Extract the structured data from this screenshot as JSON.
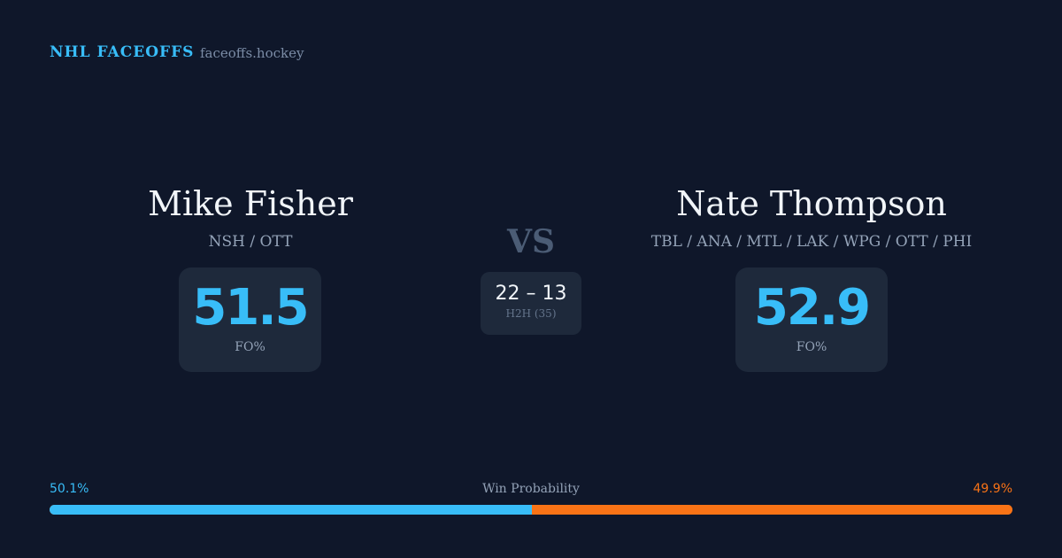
{
  "header": {
    "brand": "NHL FACEOFFS",
    "site": "faceoffs.hockey"
  },
  "left": {
    "name": "Mike Fisher",
    "teams": "NSH / OTT",
    "fo": "51.5",
    "fo_label": "FO%"
  },
  "right": {
    "name": "Nate Thompson",
    "teams": "TBL / ANA / MTL / LAK / WPG / OTT / PHI",
    "fo": "52.9",
    "fo_label": "FO%"
  },
  "vs": "VS",
  "h2h": {
    "score": "22 – 13",
    "label": "H2H (35)"
  },
  "win_probability": {
    "label": "Win Probability",
    "left": "50.1%",
    "right": "49.9%",
    "left_fraction": 0.501,
    "left_color": "#38bdf8",
    "right_color": "#f97316"
  }
}
